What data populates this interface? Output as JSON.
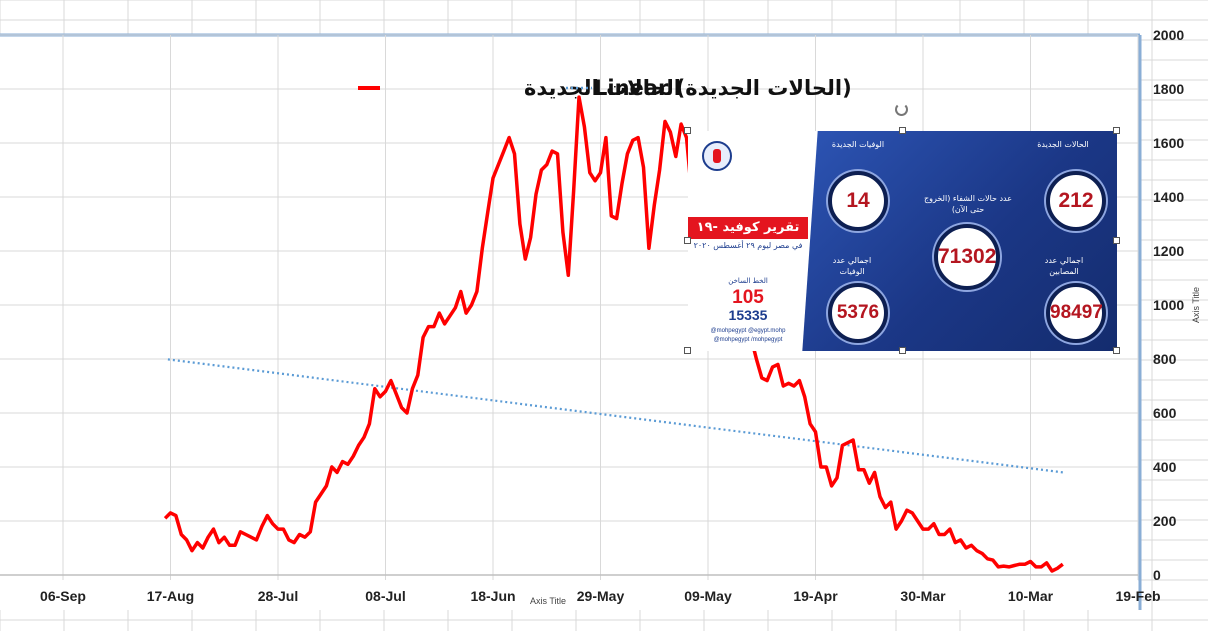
{
  "chart_data": {
    "type": "line",
    "x_axis": {
      "direction": "reversed",
      "tick_labels": [
        "06-Sep",
        "17-Aug",
        "28-Jul",
        "08-Jul",
        "18-Jun",
        "29-May",
        "09-May",
        "19-Apr",
        "30-Mar",
        "10-Mar",
        "19-Feb"
      ],
      "title": "Axis Title"
    },
    "y_axis": {
      "min": 0,
      "max": 2000,
      "step": 200,
      "tick_labels": [
        "0",
        "200",
        "400",
        "600",
        "800",
        "1000",
        "1200",
        "1400",
        "1600",
        "1800",
        "2000"
      ],
      "position": "right",
      "title": "Axis Title"
    },
    "legend": {
      "placement": "top",
      "entries": [
        {
          "name": "الحالات الجديدة",
          "color": "#ff0000",
          "style": "solid"
        },
        {
          "name": "Linear (الحالات الجديدة)",
          "color": "#5b9bd5",
          "style": "dotted"
        }
      ]
    },
    "x_start": "2020-02-14",
    "x_end": "2020-08-29",
    "series": [
      {
        "name": "الحالات الجديدة",
        "color": "#ff0000",
        "start_date": "2020-03-04",
        "values": [
          40,
          25,
          15,
          45,
          30,
          30,
          50,
          40,
          40,
          35,
          30,
          33,
          30,
          55,
          60,
          80,
          90,
          110,
          100,
          130,
          120,
          170,
          150,
          150,
          190,
          170,
          170,
          200,
          230,
          240,
          200,
          170,
          270,
          250,
          290,
          380,
          340,
          390,
          390,
          500,
          490,
          480,
          360,
          330,
          400,
          400,
          530,
          560,
          660,
          720,
          700,
          710,
          700,
          780,
          770,
          720,
          730,
          800,
          880,
          920,
          970,
          1150,
          1080,
          1500,
          1480,
          1370,
          1450,
          1440,
          1370,
          1400,
          1620,
          1670,
          1550,
          1640,
          1680,
          1500,
          1370,
          1210,
          1510,
          1620,
          1610,
          1560,
          1450,
          1320,
          1330,
          1620,
          1490,
          1460,
          1490,
          1660,
          1770,
          1420,
          1110,
          1270,
          1560,
          1570,
          1520,
          1500,
          1410,
          1250,
          1170,
          1300,
          1560,
          1620,
          1570,
          1520,
          1470,
          1340,
          1210,
          1050,
          1000,
          970,
          1050,
          990,
          960,
          930,
          970,
          920,
          920,
          880,
          740,
          690,
          600,
          620,
          670,
          720,
          680,
          660,
          690,
          560,
          510,
          480,
          440,
          410,
          420,
          380,
          400,
          330,
          300,
          270,
          160,
          140,
          150,
          120,
          130,
          170,
          170,
          190,
          220,
          180,
          130,
          140,
          150,
          160,
          110,
          110,
          140,
          120,
          170,
          140,
          100,
          120,
          90,
          130,
          150,
          220,
          230,
          210
        ]
      },
      {
        "name": "Linear (الحالات الجديدة)",
        "color": "#5b9bd5",
        "style": "dotted",
        "start": 380,
        "end": 800
      }
    ]
  },
  "infographic": {
    "banner_title": "تقرير كوفيد -١٩",
    "banner_sub": "في مصر ليوم ٢٩ أغسطس ٢٠٢٠",
    "hotline_label": "الخط الساخن",
    "hotline_1": "105",
    "hotline_2": "15335",
    "social": "@mohpegypt  @egypt.mohp  @mohpegypt  /mohpegypt",
    "new_cases_label": "الحالات الجديدة",
    "new_cases": "212",
    "new_deaths_label": "الوفيات الجديدة",
    "new_deaths": "14",
    "recovered_label": "عدد حالات الشفاء (الخروج حتى الآن)",
    "recovered": "71302",
    "total_cases_label": "اجمالي عدد المصابين",
    "total_cases": "98497",
    "total_deaths_label": "اجمالي عدد الوفيات",
    "total_deaths": "5376"
  }
}
